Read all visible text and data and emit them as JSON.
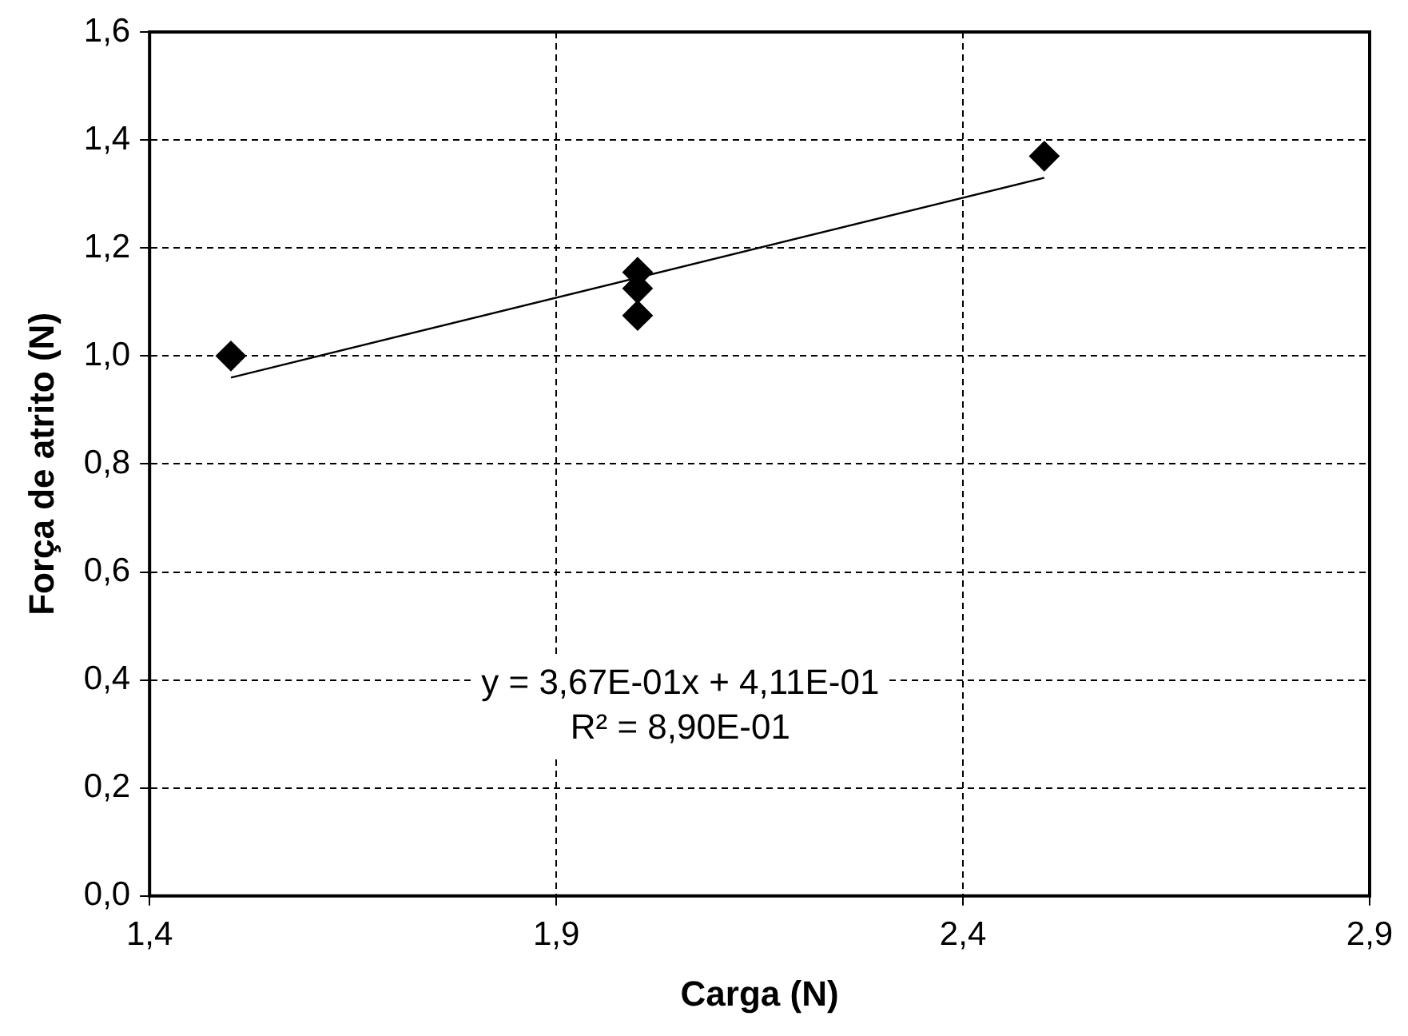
{
  "chart_data": {
    "type": "scatter",
    "xlabel": "Carga (N)",
    "ylabel": "Força de atrito (N)",
    "series": [
      {
        "type": "scatter",
        "color": "#000000",
        "marker": "diamond",
        "x": [
          1.5,
          2.0,
          2.0,
          2.0,
          2.5
        ],
        "values": [
          1.0,
          1.155,
          1.125,
          1.075,
          1.37
        ]
      },
      {
        "type": "line",
        "color": "#000000",
        "marker": "none",
        "x": [
          1.5,
          2.5
        ],
        "values": [
          0.96,
          1.33
        ]
      }
    ],
    "xlim": [
      1.4,
      2.9
    ],
    "xticks": [
      {
        "value": 1.4,
        "label": "1,4"
      },
      {
        "value": 1.9,
        "label": "1,9"
      },
      {
        "value": 2.4,
        "label": "2,4"
      },
      {
        "value": 2.9,
        "label": "2,9"
      }
    ],
    "ylim": [
      0,
      1.6
    ],
    "yticks": [
      {
        "value": 0,
        "label": "0,0"
      },
      {
        "value": 0.2,
        "label": "0,2"
      },
      {
        "value": 0.4,
        "label": "0,4"
      },
      {
        "value": 0.6,
        "label": "0,6"
      },
      {
        "value": 0.8,
        "label": "0,8"
      },
      {
        "value": 1.0,
        "label": "1,0"
      },
      {
        "value": 1.2,
        "label": "1,2"
      },
      {
        "value": 1.4,
        "label": "1,4"
      },
      {
        "value": 1.6,
        "label": "1,6"
      }
    ],
    "grid": true,
    "legend": false,
    "annotations": [
      "y = 3,67E-01x + 4,11E-01",
      "R² = 8,90E-01"
    ]
  }
}
